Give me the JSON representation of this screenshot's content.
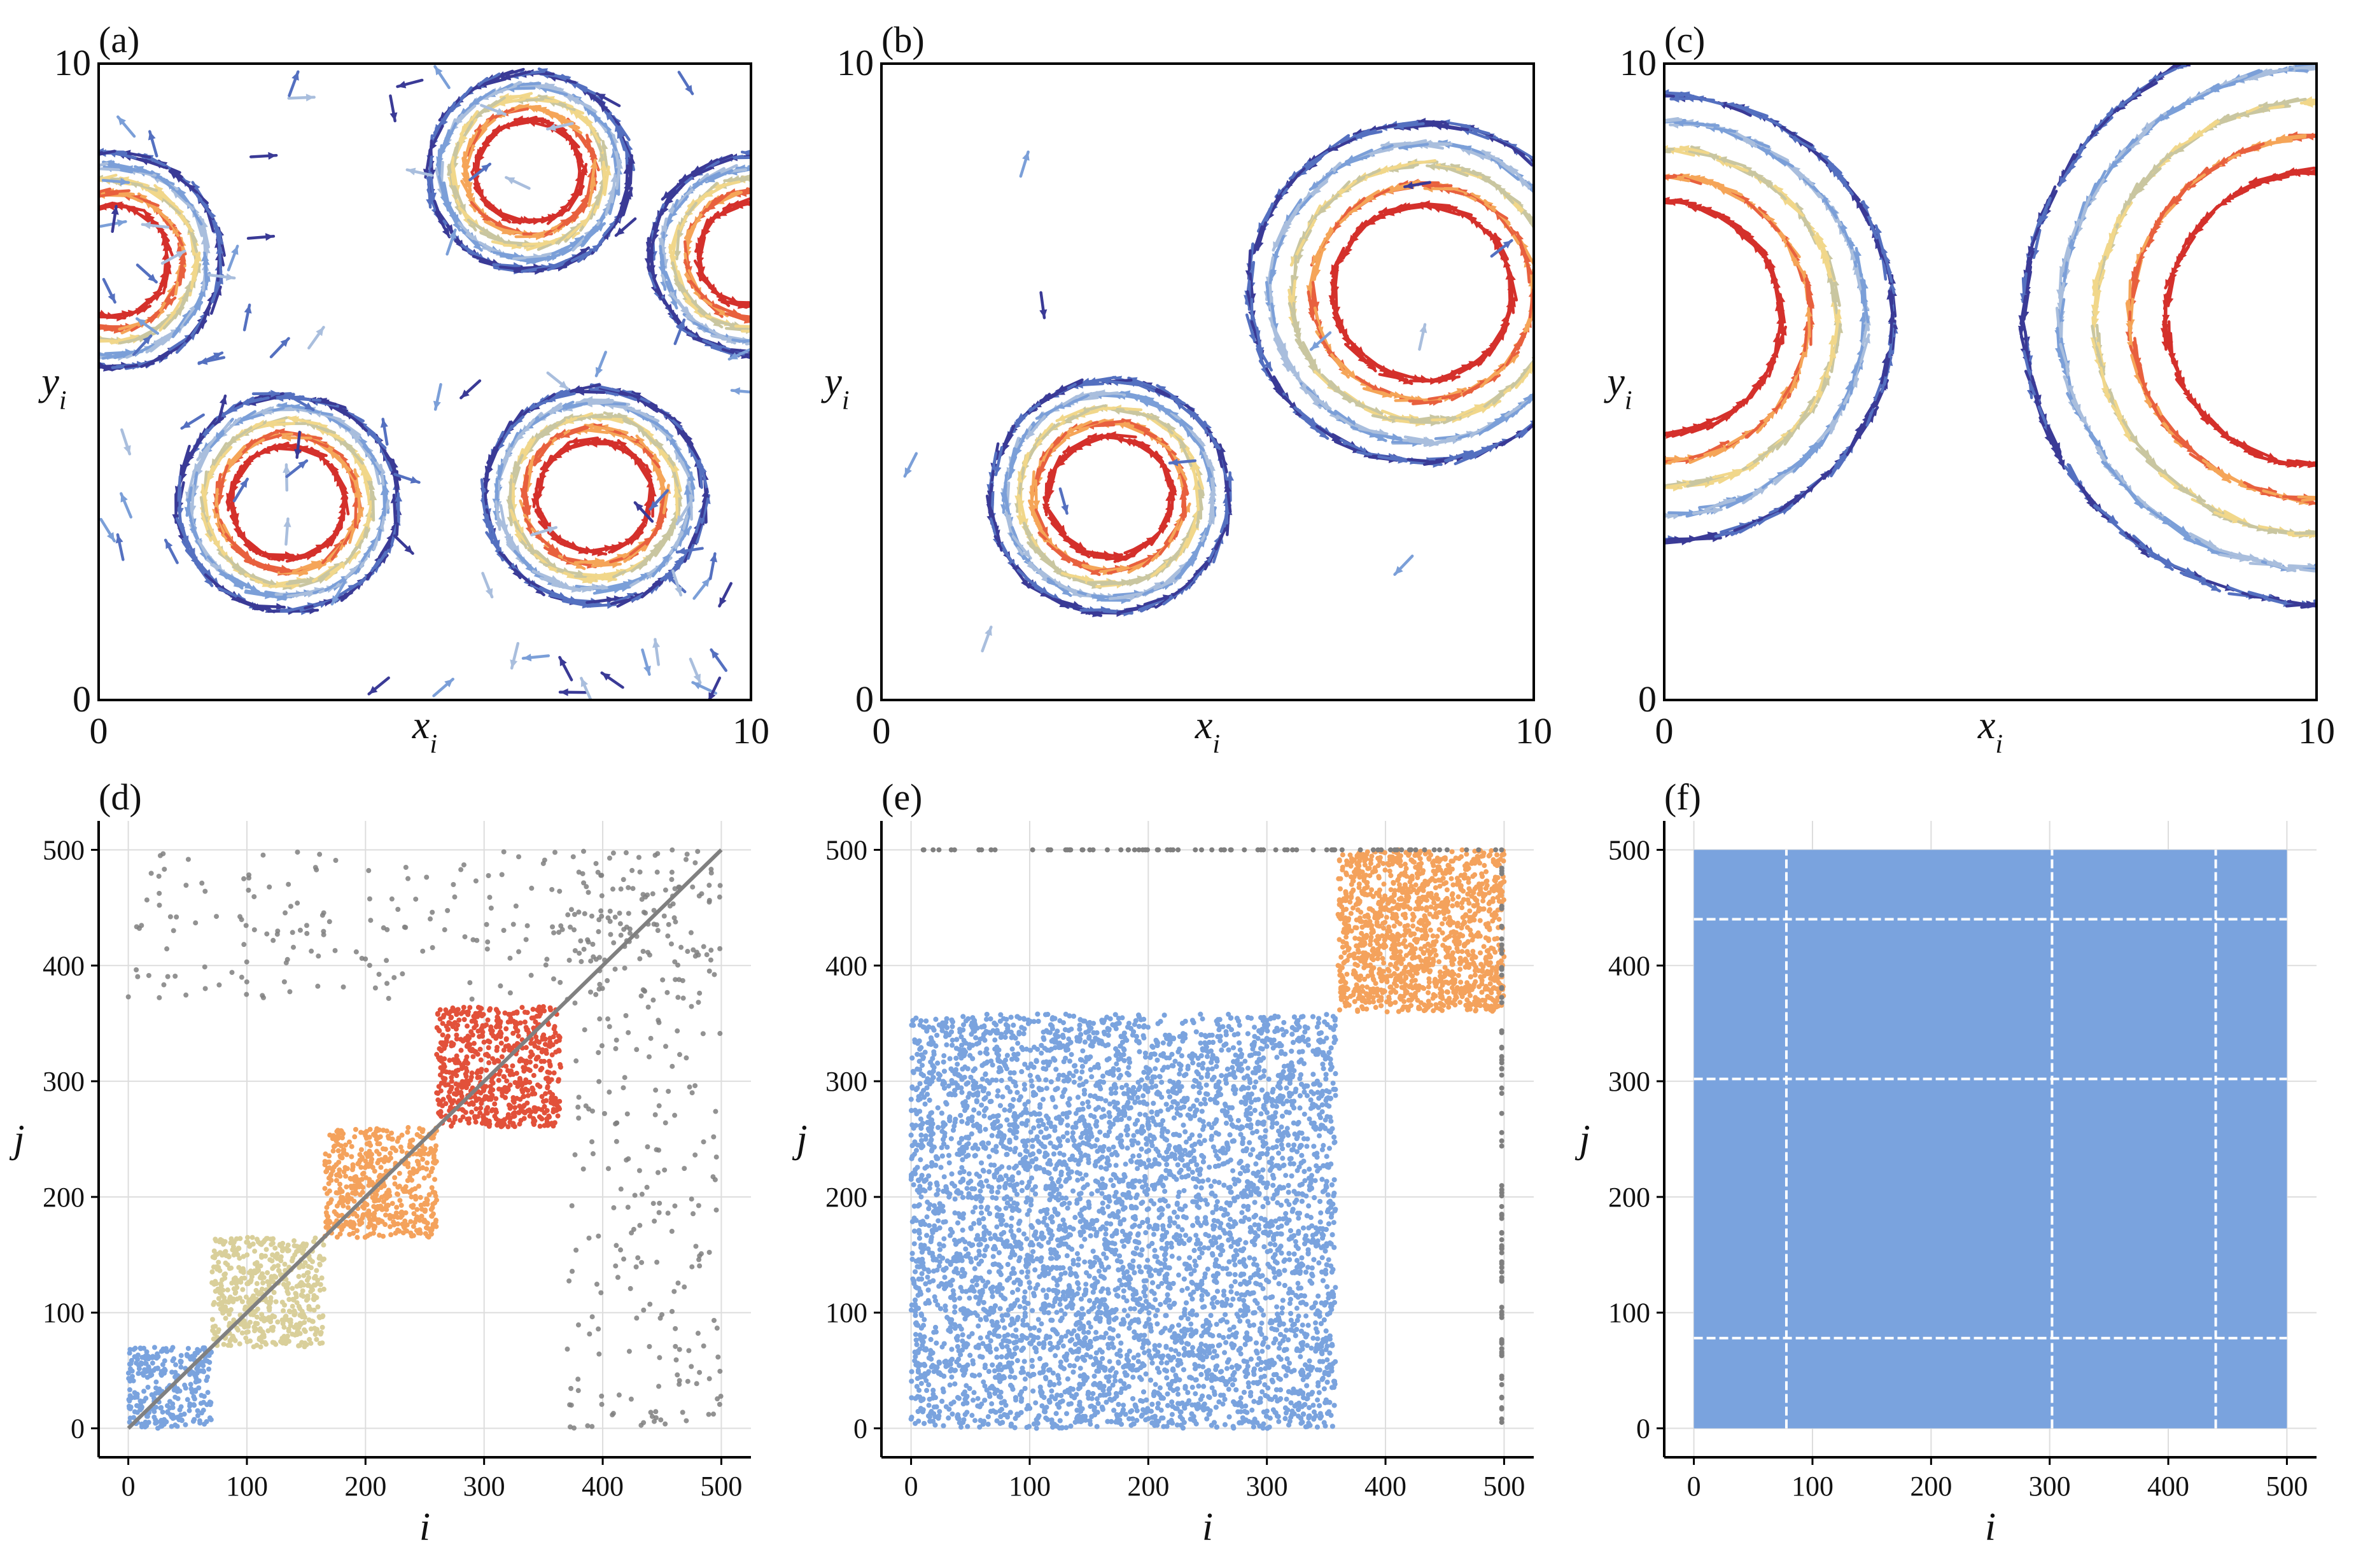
{
  "panels_top": [
    {
      "label": "(a)",
      "xlabel": "x_i",
      "ylabel": "y_i",
      "x_ticks": [
        "0",
        "10"
      ],
      "y_ticks": [
        "0",
        "10"
      ],
      "vortices": [
        {
          "cx": 6.6,
          "cy": 8.3,
          "r": 1.1
        },
        {
          "cx": 2.9,
          "cy": 3.1,
          "r": 1.2
        },
        {
          "cx": 7.6,
          "cy": 3.2,
          "r": 1.2
        },
        {
          "cx": 0.2,
          "cy": 6.9,
          "r": 1.2
        },
        {
          "cx": 10.0,
          "cy": 7.0,
          "r": 1.1
        }
      ],
      "scatter_density": 0.7
    },
    {
      "label": "(b)",
      "xlabel": "x_i",
      "ylabel": "y_i",
      "x_ticks": [
        "0",
        "10"
      ],
      "y_ticks": [
        "0",
        "10"
      ],
      "vortices": [
        {
          "cx": 3.5,
          "cy": 3.2,
          "r": 1.3
        },
        {
          "cx": 8.3,
          "cy": 6.4,
          "r": 1.9
        }
      ],
      "scatter_density": 0.1
    },
    {
      "label": "(c)",
      "xlabel": "x_i",
      "ylabel": "y_i",
      "x_ticks": [
        "0",
        "10"
      ],
      "y_ticks": [
        "0",
        "10"
      ],
      "vortices": [
        {
          "cx": 0.0,
          "cy": 6.0,
          "r": 2.5
        },
        {
          "cx": 10.0,
          "cy": 6.0,
          "r": 3.2
        }
      ],
      "scatter_density": 0.0
    }
  ],
  "chart_data": [
    {
      "type": "scatter",
      "panel": "(d)",
      "xlabel": "i",
      "ylabel": "j",
      "xlim": [
        -25,
        525
      ],
      "ylim": [
        -25,
        525
      ],
      "x_ticks": [
        0,
        100,
        200,
        300,
        400,
        500
      ],
      "y_ticks": [
        0,
        100,
        200,
        300,
        400,
        500
      ],
      "grid": true,
      "diagonal": {
        "from": 0,
        "to": 500,
        "color": "#808080"
      },
      "clusters": [
        {
          "range": [
            0,
            70
          ],
          "color": "#7aa3de"
        },
        {
          "range": [
            70,
            165
          ],
          "color": "#d9cf9a"
        },
        {
          "range": [
            165,
            260
          ],
          "color": "#f4a25c"
        },
        {
          "range": [
            260,
            365
          ],
          "color": "#e2513a"
        }
      ],
      "noise_color": "#7f7f7f"
    },
    {
      "type": "scatter",
      "panel": "(e)",
      "xlabel": "i",
      "ylabel": "j",
      "xlim": [
        -25,
        525
      ],
      "ylim": [
        -25,
        525
      ],
      "x_ticks": [
        0,
        100,
        200,
        300,
        400,
        500
      ],
      "y_ticks": [
        0,
        100,
        200,
        300,
        400,
        500
      ],
      "grid": true,
      "clusters": [
        {
          "range": [
            0,
            358
          ],
          "color": "#7aa3de"
        },
        {
          "range": [
            360,
            500
          ],
          "color": "#f4a25c"
        }
      ],
      "noise_color": "#7f7f7f"
    },
    {
      "type": "scatter",
      "panel": "(f)",
      "xlabel": "i",
      "ylabel": "j",
      "xlim": [
        -25,
        525
      ],
      "ylim": [
        -25,
        525
      ],
      "x_ticks": [
        0,
        100,
        200,
        300,
        400,
        500
      ],
      "y_ticks": [
        0,
        100,
        200,
        300,
        400,
        500
      ],
      "grid": true,
      "clusters": [
        {
          "range": [
            0,
            500
          ],
          "color": "#7aa3de"
        }
      ],
      "gaps": [
        78,
        302,
        440
      ]
    }
  ],
  "colors": {
    "speed_scale": [
      "#3a3a96",
      "#5470c0",
      "#7b9fd8",
      "#a9bedd",
      "#c9c6a0",
      "#f1d78a",
      "#f5a558",
      "#e8603e",
      "#d4302b"
    ]
  }
}
